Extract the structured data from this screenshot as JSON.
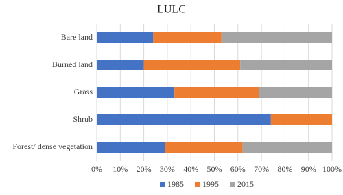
{
  "chart_data": {
    "type": "stacked-bar-horizontal",
    "title": "LULC",
    "categories": [
      "Bare land",
      "Burned land",
      "Grass",
      "Shrub",
      "Forest/ dense vegetation"
    ],
    "series": [
      {
        "name": "1985",
        "color": "#4472c4",
        "values": [
          24,
          20,
          33,
          74,
          29
        ]
      },
      {
        "name": "1995",
        "color": "#ed7d31",
        "values": [
          29,
          41,
          36,
          26,
          33
        ]
      },
      {
        "name": "2015",
        "color": "#a5a5a5",
        "values": [
          47,
          39,
          31,
          0,
          38
        ]
      }
    ],
    "xlim": [
      0,
      100
    ],
    "xticks": [
      {
        "value": 0,
        "label": "0%"
      },
      {
        "value": 10,
        "label": "10%"
      },
      {
        "value": 20,
        "label": "20%"
      },
      {
        "value": 30,
        "label": "30%"
      },
      {
        "value": 40,
        "label": "40%"
      },
      {
        "value": 50,
        "label": "50%"
      },
      {
        "value": 60,
        "label": "60%"
      },
      {
        "value": 70,
        "label": "70%"
      },
      {
        "value": 80,
        "label": "80%"
      },
      {
        "value": 90,
        "label": "90%"
      },
      {
        "value": 100,
        "label": "100%"
      }
    ],
    "grid": true,
    "legend": "bottom"
  }
}
